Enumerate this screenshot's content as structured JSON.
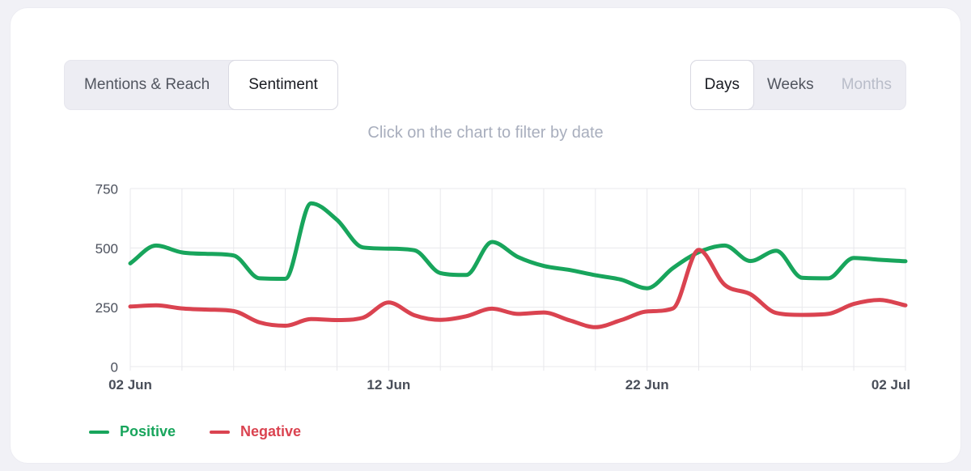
{
  "header": {
    "view_toggle": {
      "options": [
        {
          "label": "Mentions & Reach",
          "selected": false
        },
        {
          "label": "Sentiment",
          "selected": true
        }
      ]
    },
    "granularity_toggle": {
      "options": [
        {
          "label": "Days",
          "selected": true,
          "disabled": false
        },
        {
          "label": "Weeks",
          "selected": false,
          "disabled": false
        },
        {
          "label": "Months",
          "selected": false,
          "disabled": true
        }
      ]
    }
  },
  "hint": "Click on the chart to filter by date",
  "colors": {
    "positive": "#18a55c",
    "negative": "#da4350",
    "grid": "#e8e8ec",
    "axis_text": "#4b505c",
    "card_bg": "#ffffff",
    "page_bg": "#f1f1f6",
    "toggle_bg": "#ededf3",
    "hint_text": "#a8aebd"
  },
  "chart_data": {
    "type": "line",
    "title": "",
    "xlabel": "",
    "ylabel": "",
    "x": [
      "02 Jun",
      "03 Jun",
      "04 Jun",
      "05 Jun",
      "06 Jun",
      "07 Jun",
      "08 Jun",
      "09 Jun",
      "10 Jun",
      "11 Jun",
      "12 Jun",
      "13 Jun",
      "14 Jun",
      "15 Jun",
      "16 Jun",
      "17 Jun",
      "18 Jun",
      "19 Jun",
      "20 Jun",
      "21 Jun",
      "22 Jun",
      "23 Jun",
      "24 Jun",
      "25 Jun",
      "26 Jun",
      "27 Jun",
      "28 Jun",
      "29 Jun",
      "30 Jun",
      "01 Jul",
      "02 Jul"
    ],
    "series": [
      {
        "name": "Positive",
        "color": "#18a55c",
        "values": [
          435,
          510,
          481,
          475,
          468,
          372,
          370,
          688,
          618,
          502,
          497,
          490,
          394,
          386,
          525,
          462,
          424,
          407,
          385,
          366,
          330,
          415,
          482,
          510,
          445,
          488,
          374,
          372,
          458,
          450,
          444
        ]
      },
      {
        "name": "Negative",
        "color": "#da4350",
        "values": [
          253,
          258,
          245,
          240,
          234,
          186,
          172,
          200,
          196,
          206,
          270,
          216,
          197,
          212,
          244,
          222,
          228,
          195,
          166,
          196,
          232,
          245,
          492,
          345,
          305,
          226,
          218,
          222,
          264,
          281,
          258
        ]
      }
    ],
    "ylim": [
      0,
      750
    ],
    "yticks": [
      0,
      250,
      500,
      750
    ],
    "xtick_labels": [
      "02 Jun",
      "12 Jun",
      "22 Jun",
      "02 Jul"
    ],
    "xtick_indices": [
      0,
      10,
      20,
      30
    ],
    "grid": true,
    "legend_position": "bottom-left"
  }
}
